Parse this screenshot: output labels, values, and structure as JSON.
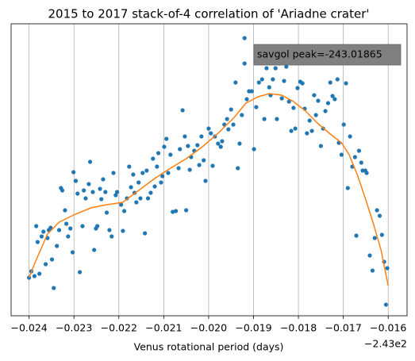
{
  "chart_data": {
    "type": "scatter",
    "title": "2015 to 2017 stack-of-4 correlation of 'Ariadne crater'",
    "x_label": "Venus rotational period (days)",
    "x_offset_label": "−2.43e2",
    "annotations": [
      "savgol peak=-243.01865"
    ],
    "xlim": [
      -0.0244,
      -0.01558
    ],
    "ylim": [
      0,
      368
    ],
    "xticks": [
      {
        "value": -0.024,
        "label": "−0.024"
      },
      {
        "value": -0.023,
        "label": "−0.023"
      },
      {
        "value": -0.022,
        "label": "−0.022"
      },
      {
        "value": -0.021,
        "label": "−0.021"
      },
      {
        "value": -0.02,
        "label": "−0.020"
      },
      {
        "value": -0.019,
        "label": "−0.019"
      },
      {
        "value": -0.018,
        "label": "−0.018"
      },
      {
        "value": -0.017,
        "label": "−0.017"
      },
      {
        "value": -0.016,
        "label": "−0.016"
      }
    ],
    "grid": "x",
    "series": [
      {
        "type": "scatter",
        "color": "#1f77b4",
        "x": [
          -0.024,
          -0.02395,
          -0.02388,
          -0.02384,
          -0.02381,
          -0.02377,
          -0.02372,
          -0.02368,
          -0.02363,
          -0.02359,
          -0.02356,
          -0.02352,
          -0.02349,
          -0.02345,
          -0.02338,
          -0.02333,
          -0.02329,
          -0.02326,
          -0.0232,
          -0.02317,
          -0.02313,
          -0.02308,
          -0.02303,
          -0.02301,
          -0.02296,
          -0.02292,
          -0.02287,
          -0.02281,
          -0.02278,
          -0.02274,
          -0.02267,
          -0.02264,
          -0.02258,
          -0.02255,
          -0.02251,
          -0.02248,
          -0.02242,
          -0.02239,
          -0.02235,
          -0.0223,
          -0.02227,
          -0.02221,
          -0.02216,
          -0.02212,
          -0.02207,
          -0.02204,
          -0.02195,
          -0.02191,
          -0.02188,
          -0.02182,
          -0.02177,
          -0.02173,
          -0.02168,
          -0.02165,
          -0.02161,
          -0.02156,
          -0.02152,
          -0.02147,
          -0.02142,
          -0.02138,
          -0.02135,
          -0.02129,
          -0.02124,
          -0.0212,
          -0.02115,
          -0.02112,
          -0.02106,
          -0.02103,
          -0.02099,
          -0.02094,
          -0.0209,
          -0.02085,
          -0.0208,
          -0.02073,
          -0.02067,
          -0.02064,
          -0.02058,
          -0.02053,
          -0.0205,
          -0.02046,
          -0.02042,
          -0.02039,
          -0.02032,
          -0.02025,
          -0.02021,
          -0.02016,
          -0.02011,
          -0.02007,
          -0.02,
          -0.01995,
          -0.01991,
          -0.01986,
          -0.01979,
          -0.01973,
          -0.0197,
          -0.01965,
          -0.01959,
          -0.01956,
          -0.0195,
          -0.01945,
          -0.0194,
          -0.01935,
          -0.01931,
          -0.01926,
          -0.0192,
          -0.0192,
          -0.01915,
          -0.0191,
          -0.01904,
          -0.01899,
          -0.01894,
          -0.01888,
          -0.01881,
          -0.01876,
          -0.01871,
          -0.01865,
          -0.01862,
          -0.01857,
          -0.01851,
          -0.01848,
          -0.01842,
          -0.01837,
          -0.01832,
          -0.01827,
          -0.01821,
          -0.01816,
          -0.01811,
          -0.01807,
          -0.01802,
          -0.01796,
          -0.01791,
          -0.01786,
          -0.01781,
          -0.01775,
          -0.0177,
          -0.01765,
          -0.01761,
          -0.01756,
          -0.0175,
          -0.01745,
          -0.0174,
          -0.01734,
          -0.01729,
          -0.01724,
          -0.01719,
          -0.01713,
          -0.0171,
          -0.01704,
          -0.01699,
          -0.01694,
          -0.0169,
          -0.01685,
          -0.0168,
          -0.01674,
          -0.01671,
          -0.01665,
          -0.0166,
          -0.01657,
          -0.01651,
          -0.01648,
          -0.01641,
          -0.01635,
          -0.0163,
          -0.01625,
          -0.01619,
          -0.01614,
          -0.01609,
          -0.01605,
          -0.01602
        ],
        "values": [
          48,
          56,
          50,
          113,
          93,
          53,
          100,
          106,
          65,
          98,
          108,
          111,
          71,
          35,
          88,
          108,
          161,
          158,
          133,
          116,
          100,
          110,
          80,
          181,
          170,
          154,
          55,
          113,
          158,
          148,
          166,
          194,
          156,
          83,
          110,
          113,
          160,
          147,
          172,
          156,
          130,
          108,
          100,
          180,
          152,
          156,
          140,
          107,
          132,
          148,
          188,
          162,
          178,
          155,
          143,
          168,
          148,
          180,
          104,
          183,
          148,
          155,
          198,
          163,
          188,
          205,
          168,
          176,
          213,
          223,
          180,
          203,
          131,
          132,
          186,
          210,
          259,
          226,
          133,
          214,
          184,
          200,
          208,
          215,
          190,
          226,
          196,
          170,
          236,
          230,
          189,
          226,
          217,
          213,
          220,
          241,
          248,
          235,
          260,
          241,
          294,
          186,
          217,
          253,
          318,
          350,
          273,
          283,
          283,
          210,
          263,
          294,
          298,
          248,
          312,
          288,
          278,
          298,
          312,
          248,
          318,
          274,
          296,
          314,
          270,
          233,
          262,
          236,
          287,
          295,
          293,
          261,
          230,
          246,
          233,
          278,
          253,
          271,
          214,
          236,
          258,
          268,
          294,
          277,
          273,
          298,
          218,
          203,
          241,
          293,
          161,
          226,
          188,
          200,
          101,
          208,
          193,
          183,
          183,
          180,
          76,
          57,
          98,
          133,
          126,
          102,
          68,
          14,
          60
        ]
      },
      {
        "type": "line",
        "color": "#ff7f0e",
        "x": [
          -0.024,
          -0.02386,
          -0.02359,
          -0.02333,
          -0.02297,
          -0.02262,
          -0.02227,
          -0.02191,
          -0.02156,
          -0.0212,
          -0.02085,
          -0.0205,
          -0.02014,
          -0.01979,
          -0.01943,
          -0.01917,
          -0.0189,
          -0.01864,
          -0.01837,
          -0.01811,
          -0.01784,
          -0.01758,
          -0.01731,
          -0.01704,
          -0.01687,
          -0.01669,
          -0.01651,
          -0.01634,
          -0.01616,
          -0.016
        ],
        "values": [
          48,
          68,
          103,
          118,
          128,
          136,
          140,
          143,
          158,
          173,
          186,
          198,
          213,
          230,
          250,
          268,
          276,
          280,
          278,
          270,
          258,
          243,
          230,
          218,
          203,
          178,
          148,
          118,
          83,
          38
        ]
      }
    ]
  }
}
